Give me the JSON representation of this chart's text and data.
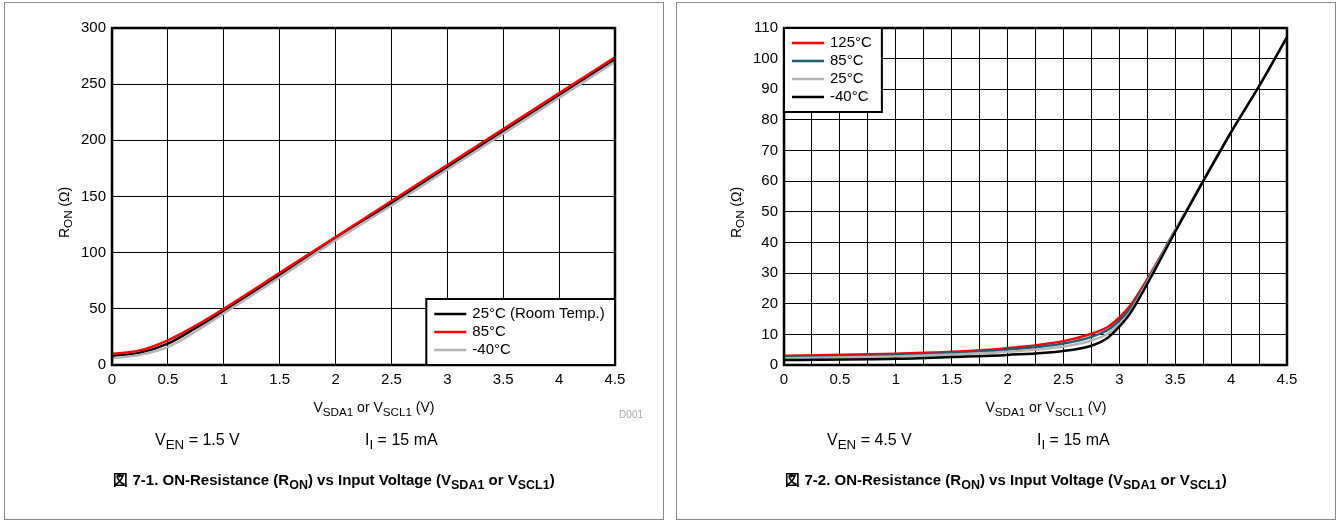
{
  "chart_data": [
    {
      "type": "line",
      "title": "図 7-1. ON-Resistance (R$_{ON}$) vs Input Voltage (V$_{SDA1}$ or V$_{SCL1}$)",
      "xlabel": "V$_{SDA1}$ or V$_{SCL1}$ (V)",
      "ylabel": "R$_{ON}$ (Ω)",
      "annotations": [
        "V$_{EN}$ = 1.5 V",
        "I$_{I}$ = 15 mA",
        "D001"
      ],
      "x": [
        0,
        0.25,
        0.5,
        0.75,
        1,
        1.5,
        2,
        2.5,
        3,
        3.5,
        4,
        4.5
      ],
      "series": [
        {
          "name": "25°C (Room Temp.)",
          "color": "#000000",
          "values": [
            8,
            11,
            19,
            33,
            48,
            80,
            113,
            144,
            176,
            208,
            240,
            272
          ]
        },
        {
          "name": "85°C",
          "color": "#ff0000",
          "values": [
            10,
            13,
            22,
            35,
            50,
            82,
            114,
            146,
            178,
            210,
            242,
            274
          ]
        },
        {
          "name": "-40°C",
          "color": "#b4b4b4",
          "values": [
            6,
            9,
            16,
            30,
            46,
            78,
            111,
            142,
            174,
            206,
            238,
            270
          ]
        }
      ],
      "xlim": [
        0,
        4.5
      ],
      "xticks": [
        0,
        0.5,
        1,
        1.5,
        2,
        2.5,
        3,
        3.5,
        4,
        4.5
      ],
      "ylim": [
        0,
        300
      ],
      "yticks": [
        0,
        50,
        100,
        150,
        200,
        250,
        300
      ],
      "grid": true,
      "legend": "bottom right",
      "marker": "none",
      "line_style": "solid"
    },
    {
      "type": "line",
      "title": "図 7-2. ON-Resistance (R$_{ON}$) vs Input Voltage (V$_{SDA1}$ or V$_{SCL1}$)",
      "xlabel": "V$_{SDA1}$ or V$_{SCL1}$ (V)",
      "ylabel": "R$_{ON}$ (Ω)",
      "annotations": [
        "V$_{EN}$ = 4.5 V",
        "I$_{I}$ = 15 mA"
      ],
      "x": [
        0,
        1,
        1.5,
        2,
        2.5,
        2.75,
        2.9,
        3,
        3.1,
        3.25,
        3.5,
        3.75,
        4,
        4.25,
        4.5
      ],
      "series": [
        {
          "name": "125°C",
          "color": "#ff0000",
          "values": [
            3,
            3.7,
            4.3,
            5.5,
            7.8,
            10.2,
            12.5,
            15.5,
            19.5,
            28,
            44,
            null,
            null,
            null,
            null
          ]
        },
        {
          "name": "85°C",
          "color": "#1f5f73",
          "values": [
            2.6,
            3.2,
            3.9,
            5,
            7,
            9.2,
            11.5,
            14.5,
            18.5,
            27.5,
            44,
            60,
            76,
            null,
            null
          ]
        },
        {
          "name": "25°C",
          "color": "#b4b4b4",
          "values": [
            2.2,
            2.8,
            3.4,
            4.3,
            6,
            8,
            10.3,
            13.3,
            17.5,
            27,
            43.8,
            60,
            76,
            91,
            107
          ]
        },
        {
          "name": "-40°C",
          "color": "#000000",
          "values": [
            1.6,
            2,
            2.6,
            3.3,
            4.6,
            6.3,
            9,
            12.5,
            17,
            26.5,
            43.5,
            60,
            76,
            91,
            107
          ]
        }
      ],
      "xlim": [
        0,
        4.5
      ],
      "xticks": [
        0,
        {
          "value": 0.25,
          "label": null
        },
        0.5,
        {
          "value": 0.75,
          "label": null
        },
        1,
        {
          "value": 1.25,
          "label": null
        },
        1.5,
        {
          "value": 1.75,
          "label": null
        },
        2,
        {
          "value": 2.25,
          "label": null
        },
        2.5,
        {
          "value": 2.75,
          "label": null
        },
        3,
        {
          "value": 3.25,
          "label": null
        },
        3.5,
        {
          "value": 3.75,
          "label": null
        },
        4,
        {
          "value": 4.25,
          "label": null
        },
        4.5
      ],
      "ylim": [
        0,
        110
      ],
      "yticks": [
        0,
        10,
        20,
        30,
        40,
        50,
        60,
        70,
        80,
        90,
        100,
        110
      ],
      "grid": true,
      "legend": "top left",
      "marker": "none",
      "line_style": "solid"
    }
  ]
}
